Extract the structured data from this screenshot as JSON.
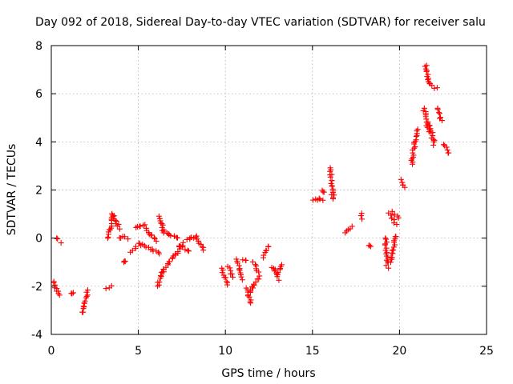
{
  "chart_data": {
    "type": "scatter",
    "title": "Day 092 of 2018, Sidereal Day-to-day VTEC variation (SDTVAR) for receiver salu",
    "xlabel": "GPS time / hours",
    "ylabel": "SDTVAR / TECUs",
    "xlim": [
      0,
      25
    ],
    "ylim": [
      -4,
      8
    ],
    "xticks": [
      0,
      5,
      10,
      15,
      20,
      25
    ],
    "yticks": [
      -4,
      -2,
      0,
      2,
      4,
      6,
      8
    ],
    "xtick_labels": [
      "0",
      "5",
      "10",
      "15",
      "20",
      "25"
    ],
    "ytick_labels": [
      "-4",
      "-2",
      "0",
      "2",
      "4",
      "6",
      "8"
    ],
    "grid": true,
    "marker": "+",
    "color": "#ff0000",
    "segments": [
      {
        "x": [
          0.15,
          0.45
        ],
        "y": [
          -1.8,
          -2.4
        ]
      },
      {
        "x": [
          0.3,
          0.5
        ],
        "y": [
          0.0,
          -0.15
        ]
      },
      {
        "x": [
          1.2,
          1.2
        ],
        "y": [
          -2.3,
          -2.3
        ]
      },
      {
        "x": [
          1.8,
          2.1
        ],
        "y": [
          -3.1,
          -2.2
        ]
      },
      {
        "x": [
          3.2,
          3.4
        ],
        "y": [
          -2.1,
          -2.0
        ]
      },
      {
        "x": [
          3.25,
          3.55
        ],
        "y": [
          0.0,
          1.0
        ]
      },
      {
        "x": [
          3.55,
          3.9
        ],
        "y": [
          1.0,
          0.4
        ]
      },
      {
        "x": [
          3.9,
          4.4
        ],
        "y": [
          0.05,
          0.0
        ]
      },
      {
        "x": [
          4.2,
          4.2
        ],
        "y": [
          -1.0,
          -1.0
        ]
      },
      {
        "x": [
          4.6,
          4.9
        ],
        "y": [
          -0.6,
          -0.4
        ]
      },
      {
        "x": [
          4.85,
          5.4
        ],
        "y": [
          0.4,
          0.6
        ]
      },
      {
        "x": [
          5.0,
          6.2
        ],
        "y": [
          -0.2,
          -0.6
        ]
      },
      {
        "x": [
          5.4,
          6.0
        ],
        "y": [
          0.4,
          -0.1
        ]
      },
      {
        "x": [
          6.1,
          6.4
        ],
        "y": [
          -2.0,
          -1.4
        ]
      },
      {
        "x": [
          6.25,
          6.45
        ],
        "y": [
          0.9,
          0.2
        ]
      },
      {
        "x": [
          6.4,
          7.6
        ],
        "y": [
          -1.4,
          -0.2
        ]
      },
      {
        "x": [
          6.5,
          7.3
        ],
        "y": [
          0.25,
          0.0
        ]
      },
      {
        "x": [
          7.3,
          7.9
        ],
        "y": [
          -0.3,
          -0.5
        ]
      },
      {
        "x": [
          7.8,
          8.3
        ],
        "y": [
          -0.1,
          0.1
        ]
      },
      {
        "x": [
          8.3,
          8.8
        ],
        "y": [
          0.0,
          -0.5
        ]
      },
      {
        "x": [
          9.8,
          10.1
        ],
        "y": [
          -1.3,
          -1.9
        ]
      },
      {
        "x": [
          10.2,
          10.4
        ],
        "y": [
          -1.2,
          -1.6
        ]
      },
      {
        "x": [
          10.7,
          11.0
        ],
        "y": [
          -0.9,
          -1.7
        ]
      },
      {
        "x": [
          11.0,
          11.2
        ],
        "y": [
          -0.9,
          -0.9
        ]
      },
      {
        "x": [
          11.2,
          11.5
        ],
        "y": [
          -2.1,
          -2.7
        ]
      },
      {
        "x": [
          11.4,
          11.9
        ],
        "y": [
          -2.3,
          -1.6
        ]
      },
      {
        "x": [
          11.6,
          11.9
        ],
        "y": [
          -1.0,
          -1.4
        ]
      },
      {
        "x": [
          12.2,
          12.5
        ],
        "y": [
          -0.8,
          -0.3
        ]
      },
      {
        "x": [
          12.7,
          13.1
        ],
        "y": [
          -1.2,
          -1.7
        ]
      },
      {
        "x": [
          13.0,
          13.3
        ],
        "y": [
          -1.5,
          -1.1
        ]
      },
      {
        "x": [
          15.0,
          15.6
        ],
        "y": [
          1.6,
          1.6
        ]
      },
      {
        "x": [
          15.6,
          15.6
        ],
        "y": [
          1.95,
          1.95
        ]
      },
      {
        "x": [
          16.0,
          16.2
        ],
        "y": [
          2.9,
          1.6
        ]
      },
      {
        "x": [
          16.9,
          17.3
        ],
        "y": [
          0.2,
          0.45
        ]
      },
      {
        "x": [
          17.8,
          17.9
        ],
        "y": [
          1.0,
          0.8
        ]
      },
      {
        "x": [
          18.3,
          18.3
        ],
        "y": [
          -0.3,
          -0.3
        ]
      },
      {
        "x": [
          19.2,
          19.3
        ],
        "y": [
          0.0,
          -1.2
        ]
      },
      {
        "x": [
          19.4,
          19.8
        ],
        "y": [
          1.0,
          0.6
        ]
      },
      {
        "x": [
          19.5,
          19.8
        ],
        "y": [
          -1.0,
          0.1
        ]
      },
      {
        "x": [
          19.6,
          19.9
        ],
        "y": [
          1.1,
          0.8
        ]
      },
      {
        "x": [
          20.1,
          20.3
        ],
        "y": [
          2.4,
          2.1
        ]
      },
      {
        "x": [
          20.7,
          21.0
        ],
        "y": [
          3.1,
          4.5
        ]
      },
      {
        "x": [
          21.4,
          21.7
        ],
        "y": [
          5.4,
          4.4
        ]
      },
      {
        "x": [
          21.5,
          21.7
        ],
        "y": [
          7.2,
          6.4
        ]
      },
      {
        "x": [
          21.7,
          22.0
        ],
        "y": [
          4.8,
          3.9
        ]
      },
      {
        "x": [
          21.8,
          22.1
        ],
        "y": [
          6.4,
          6.2
        ]
      },
      {
        "x": [
          22.2,
          22.4
        ],
        "y": [
          5.4,
          4.9
        ]
      },
      {
        "x": [
          22.6,
          22.8
        ],
        "y": [
          3.9,
          3.5
        ]
      }
    ]
  }
}
